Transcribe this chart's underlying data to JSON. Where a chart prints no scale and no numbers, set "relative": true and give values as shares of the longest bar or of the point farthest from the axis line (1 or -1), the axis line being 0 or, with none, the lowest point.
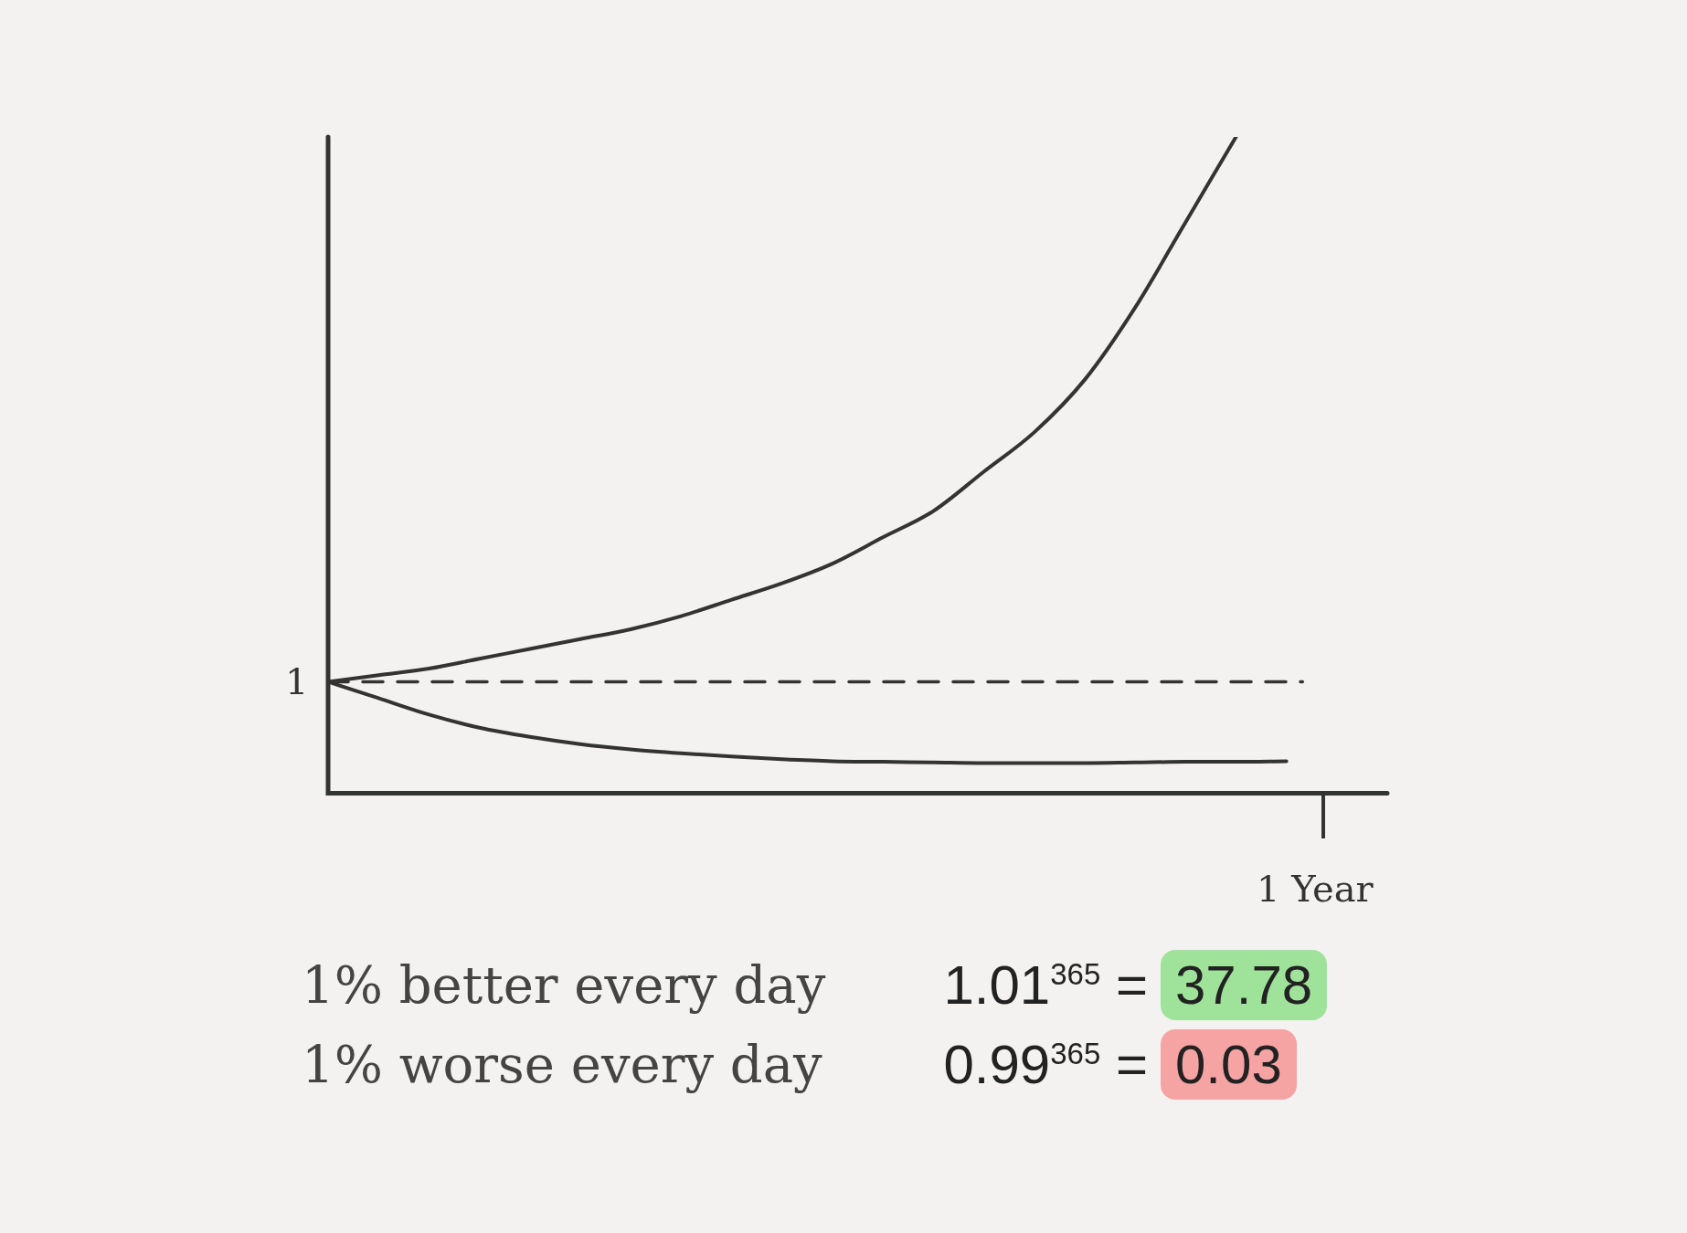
{
  "chart_data": {
    "type": "line",
    "relative": true,
    "marker": "none",
    "grid": false,
    "legend": false,
    "categories": [
      null,
      null,
      null,
      null,
      null,
      null,
      null,
      null,
      null,
      null,
      null,
      null,
      null,
      null,
      null,
      null,
      null,
      null,
      null,
      null,
      null,
      null
    ],
    "series": [
      {
        "color": "#333333",
        "values": [
          0.17,
          0.18,
          0.19,
          0.205,
          0.22,
          0.235,
          0.25,
          0.27,
          0.295,
          0.32,
          0.35,
          0.39,
          0.43,
          0.49,
          0.55,
          0.63,
          0.74,
          0.87,
          1,
          null,
          null,
          null
        ]
      },
      {
        "color": "#333333",
        "values": [
          0.17,
          0.145,
          0.12,
          0.1,
          0.086,
          0.075,
          0.067,
          0.061,
          0.056,
          0.052,
          0.049,
          0.048,
          0.047,
          0.046,
          0.046,
          0.046,
          0.047,
          0.048,
          0.048,
          0.049,
          null,
          null
        ]
      }
    ],
    "ref_lines": [
      {
        "axis": "y",
        "value": 0.17,
        "line_style": "dashed",
        "color": "#333333"
      }
    ],
    "annotations": [
      "1",
      "1% better every day",
      "1.01$^{365}$ =",
      "37.78",
      "1% worse every day",
      "0.99$^{365}$ =",
      "0.03",
      "1 Year"
    ]
  }
}
